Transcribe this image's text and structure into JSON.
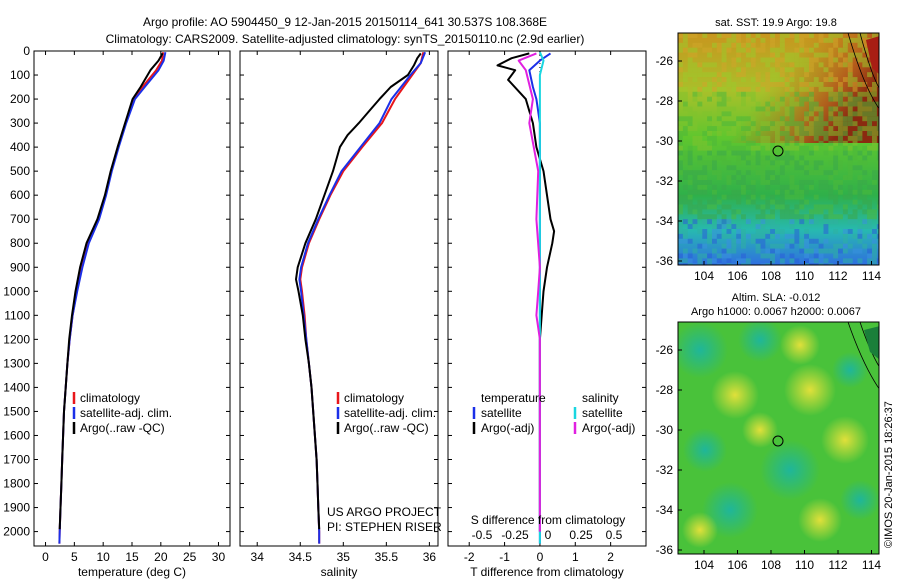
{
  "header": {
    "line1": "Argo profile: AO 5904450_9 12-Jan-2015 20150114_641 30.537S 108.368E",
    "line2": "Climatology: CARS2009. Satellite-adjusted climatology: synTS_20150110.nc (2.9d earlier)"
  },
  "colors": {
    "climatology": "#e8161b",
    "satellite": "#1b2fe8",
    "argo": "#000000",
    "sal_satellite": "#19d6e0",
    "sal_argo": "#e020e0"
  },
  "legend": {
    "climatology": "climatology",
    "satellite_adj": "satellite-adj. clim.",
    "argo_raw": "Argo(..raw -QC)",
    "temperature": "temperature",
    "salinity": "salinity",
    "satellite": "satellite",
    "argo_adj": "Argo(-adj)"
  },
  "credits": {
    "line1": "US ARGO PROJECT",
    "line2": "PI: STEPHEN RISER"
  },
  "maps": {
    "sst_title": "sat. SST: 19.9 Argo: 19.8",
    "sla_title1": "Altim. SLA: -0.012",
    "sla_title2": "Argo h1000: 0.0067 h2000: 0.0067",
    "stamp": "©IMOS 20-Jan-2015 18:26:37",
    "lon_ticks": [
      "104",
      "106",
      "108",
      "110",
      "112",
      "114"
    ],
    "lat_ticks": [
      "-26",
      "-28",
      "-30",
      "-32",
      "-34",
      "-36"
    ]
  },
  "chart_data": [
    {
      "type": "line",
      "xlabel": "temperature (deg C)",
      "ylabel": "",
      "xlim": [
        -2,
        32
      ],
      "ylim": [
        2060,
        0
      ],
      "xticks": [
        0,
        5,
        10,
        15,
        20,
        25,
        30
      ],
      "yticks": [
        0,
        100,
        200,
        300,
        400,
        500,
        600,
        700,
        800,
        900,
        1000,
        1100,
        1200,
        1300,
        1400,
        1500,
        1600,
        1700,
        1800,
        1900,
        2000
      ],
      "series": [
        {
          "name": "climatology",
          "color": "#e8161b",
          "points": [
            [
              20.4,
              5
            ],
            [
              20.2,
              40
            ],
            [
              19.2,
              80
            ],
            [
              16.8,
              150
            ],
            [
              15.3,
              200
            ],
            [
              13.9,
              300
            ],
            [
              12.6,
              400
            ],
            [
              11.4,
              500
            ],
            [
              10.4,
              600
            ],
            [
              9.2,
              700
            ],
            [
              7.4,
              800
            ],
            [
              6.3,
              900
            ],
            [
              5.4,
              1000
            ],
            [
              4.7,
              1100
            ],
            [
              4.2,
              1200
            ],
            [
              3.8,
              1300
            ],
            [
              3.5,
              1400
            ],
            [
              3.2,
              1500
            ],
            [
              3.05,
              1600
            ],
            [
              2.9,
              1700
            ],
            [
              2.75,
              1800
            ],
            [
              2.6,
              1900
            ],
            [
              2.45,
              2000
            ],
            [
              2.4,
              2050
            ]
          ]
        },
        {
          "name": "satellite-adj. clim.",
          "color": "#1b2fe8",
          "points": [
            [
              20.8,
              5
            ],
            [
              20.5,
              40
            ],
            [
              19.6,
              80
            ],
            [
              17.2,
              150
            ],
            [
              15.5,
              200
            ],
            [
              14.0,
              300
            ],
            [
              12.7,
              400
            ],
            [
              11.5,
              500
            ],
            [
              10.5,
              600
            ],
            [
              9.3,
              700
            ],
            [
              7.5,
              800
            ],
            [
              6.4,
              900
            ],
            [
              5.5,
              1000
            ],
            [
              4.7,
              1100
            ],
            [
              4.2,
              1200
            ],
            [
              3.8,
              1300
            ],
            [
              3.5,
              1400
            ],
            [
              3.2,
              1500
            ],
            [
              3.05,
              1600
            ],
            [
              2.9,
              1700
            ],
            [
              2.75,
              1800
            ],
            [
              2.6,
              1900
            ],
            [
              2.45,
              2000
            ],
            [
              2.4,
              2050
            ]
          ]
        },
        {
          "name": "Argo(..raw -QC)",
          "color": "#000000",
          "points": [
            [
              20.3,
              10
            ],
            [
              19.6,
              40
            ],
            [
              18.2,
              80
            ],
            [
              16.5,
              150
            ],
            [
              15.1,
              200
            ],
            [
              13.8,
              300
            ],
            [
              12.5,
              400
            ],
            [
              11.3,
              500
            ],
            [
              10.3,
              600
            ],
            [
              9.0,
              700
            ],
            [
              7.1,
              800
            ],
            [
              6.0,
              900
            ],
            [
              5.2,
              1000
            ],
            [
              4.6,
              1100
            ],
            [
              4.1,
              1200
            ],
            [
              3.8,
              1300
            ],
            [
              3.5,
              1400
            ],
            [
              3.2,
              1500
            ],
            [
              3.05,
              1600
            ],
            [
              2.9,
              1700
            ],
            [
              2.75,
              1800
            ],
            [
              2.6,
              1900
            ],
            [
              2.45,
              1990
            ]
          ]
        }
      ]
    },
    {
      "type": "line",
      "xlabel": "salinity",
      "ylabel": "",
      "xlim": [
        33.8,
        36.1
      ],
      "ylim": [
        2060,
        0
      ],
      "xticks": [
        34,
        34.5,
        35,
        35.5,
        36
      ],
      "xticklabels": [
        "34",
        "34.5",
        "35",
        "35.5",
        "36"
      ],
      "series": [
        {
          "name": "climatology",
          "color": "#e8161b",
          "points": [
            [
              35.93,
              5
            ],
            [
              35.9,
              50
            ],
            [
              35.8,
              100
            ],
            [
              35.6,
              200
            ],
            [
              35.45,
              300
            ],
            [
              35.22,
              400
            ],
            [
              35.0,
              500
            ],
            [
              34.85,
              600
            ],
            [
              34.72,
              700
            ],
            [
              34.6,
              800
            ],
            [
              34.52,
              900
            ],
            [
              34.5,
              950
            ],
            [
              34.52,
              1000
            ],
            [
              34.55,
              1100
            ],
            [
              34.57,
              1200
            ],
            [
              34.6,
              1300
            ],
            [
              34.63,
              1400
            ],
            [
              34.65,
              1500
            ],
            [
              34.67,
              1600
            ],
            [
              34.69,
              1700
            ],
            [
              34.7,
              1800
            ],
            [
              34.71,
              1900
            ],
            [
              34.72,
              2000
            ],
            [
              34.72,
              2050
            ]
          ]
        },
        {
          "name": "satellite-adj. clim.",
          "color": "#1b2fe8",
          "points": [
            [
              35.95,
              5
            ],
            [
              35.9,
              50
            ],
            [
              35.78,
              100
            ],
            [
              35.56,
              200
            ],
            [
              35.42,
              300
            ],
            [
              35.2,
              400
            ],
            [
              34.98,
              500
            ],
            [
              34.84,
              600
            ],
            [
              34.71,
              700
            ],
            [
              34.59,
              800
            ],
            [
              34.51,
              900
            ],
            [
              34.49,
              950
            ],
            [
              34.51,
              1000
            ],
            [
              34.54,
              1100
            ],
            [
              34.57,
              1200
            ],
            [
              34.6,
              1300
            ],
            [
              34.63,
              1400
            ],
            [
              34.65,
              1500
            ],
            [
              34.67,
              1600
            ],
            [
              34.69,
              1700
            ],
            [
              34.7,
              1800
            ],
            [
              34.71,
              1900
            ],
            [
              34.72,
              2000
            ],
            [
              34.72,
              2050
            ]
          ]
        },
        {
          "name": "Argo(..raw -QC)",
          "color": "#000000",
          "points": [
            [
              35.9,
              10
            ],
            [
              35.86,
              30
            ],
            [
              35.82,
              60
            ],
            [
              35.75,
              100
            ],
            [
              35.55,
              150
            ],
            [
              35.42,
              200
            ],
            [
              35.3,
              250
            ],
            [
              35.18,
              300
            ],
            [
              35.05,
              350
            ],
            [
              34.96,
              400
            ],
            [
              34.88,
              500
            ],
            [
              34.78,
              600
            ],
            [
              34.68,
              700
            ],
            [
              34.56,
              800
            ],
            [
              34.47,
              900
            ],
            [
              34.45,
              950
            ],
            [
              34.48,
              1000
            ],
            [
              34.53,
              1100
            ],
            [
              34.56,
              1200
            ],
            [
              34.6,
              1300
            ],
            [
              34.63,
              1400
            ],
            [
              34.65,
              1500
            ],
            [
              34.67,
              1600
            ],
            [
              34.69,
              1700
            ],
            [
              34.7,
              1800
            ],
            [
              34.71,
              1900
            ],
            [
              34.72,
              1990
            ]
          ]
        }
      ]
    },
    {
      "type": "line",
      "xlabel": "T difference from climatology",
      "xlabel_top": "S difference from climatology",
      "ylabel": "",
      "xlim": [
        -2.6,
        3.0
      ],
      "ylim": [
        2060,
        0
      ],
      "xticks": [
        -2,
        -1,
        0,
        1,
        2
      ],
      "s_ticks": [
        "-0.5",
        "-0.25",
        "0",
        "0.25",
        "0.5"
      ],
      "series": [
        {
          "name": "temperature satellite",
          "color": "#1b2fe8",
          "points": [
            [
              0.3,
              10
            ],
            [
              0.0,
              40
            ],
            [
              -0.3,
              80
            ],
            [
              -0.2,
              150
            ],
            [
              -0.1,
              200
            ],
            [
              0.0,
              300
            ],
            [
              0.0,
              400
            ],
            [
              0.0,
              600
            ],
            [
              0.0,
              800
            ],
            [
              0.0,
              1000
            ],
            [
              0.0,
              1200
            ],
            [
              0.0,
              1400
            ],
            [
              0.0,
              1600
            ],
            [
              0.0,
              1800
            ],
            [
              0.0,
              2000
            ],
            [
              0.0,
              2050
            ]
          ]
        },
        {
          "name": "temperature Argo(-adj)",
          "color": "#000000",
          "points": [
            [
              -0.3,
              10
            ],
            [
              -0.8,
              30
            ],
            [
              -1.2,
              60
            ],
            [
              -0.7,
              80
            ],
            [
              -0.9,
              120
            ],
            [
              -0.4,
              200
            ],
            [
              -0.2,
              300
            ],
            [
              -0.1,
              400
            ],
            [
              0.1,
              500
            ],
            [
              0.2,
              600
            ],
            [
              0.3,
              700
            ],
            [
              0.4,
              750
            ],
            [
              0.35,
              800
            ],
            [
              0.2,
              900
            ],
            [
              0.1,
              1000
            ],
            [
              0.0,
              1200
            ],
            [
              0.0,
              1400
            ],
            [
              0.0,
              1600
            ],
            [
              0.0,
              1800
            ],
            [
              0.0,
              2000
            ]
          ]
        },
        {
          "name": "salinity satellite",
          "color": "#19d6e0",
          "points": [
            [
              0.0,
              5
            ],
            [
              0.1,
              40
            ],
            [
              0.0,
              100
            ],
            [
              0.0,
              300
            ],
            [
              0.0,
              600
            ],
            [
              0.0,
              900
            ],
            [
              0.0,
              1200
            ],
            [
              0.0,
              1500
            ],
            [
              0.0,
              1800
            ],
            [
              0.0,
              2050
            ]
          ]
        },
        {
          "name": "salinity Argo(-adj)",
          "color": "#e020e0",
          "points": [
            [
              -0.1,
              10
            ],
            [
              -0.6,
              40
            ],
            [
              -0.4,
              80
            ],
            [
              -0.2,
              200
            ],
            [
              -0.3,
              300
            ],
            [
              -0.05,
              500
            ],
            [
              -0.1,
              700
            ],
            [
              0.0,
              900
            ],
            [
              -0.05,
              1000
            ],
            [
              -0.1,
              1100
            ],
            [
              0.0,
              1200
            ],
            [
              0.0,
              1400
            ],
            [
              0.0,
              1600
            ],
            [
              0.0,
              1800
            ],
            [
              0.0,
              2000
            ]
          ]
        }
      ]
    }
  ]
}
